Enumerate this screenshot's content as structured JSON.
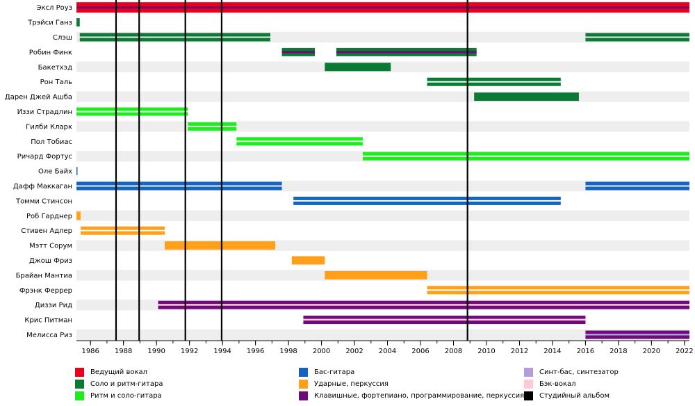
{
  "chart_data": {
    "type": "timeline",
    "title": "",
    "xlim": [
      1985.15,
      2022.3
    ],
    "tick_labels": [
      "1986",
      "1988",
      "1990",
      "1992",
      "1994",
      "1996",
      "1998",
      "2000",
      "2002",
      "2004",
      "2006",
      "2008",
      "2010",
      "2012",
      "2014",
      "2016",
      "2018",
      "2020",
      "2022"
    ],
    "ticks": [
      1986,
      1988,
      1990,
      1992,
      1994,
      1996,
      1998,
      2000,
      2002,
      2004,
      2006,
      2008,
      2010,
      2012,
      2014,
      2016,
      2018,
      2020,
      2022
    ],
    "albums": [
      1987.55,
      1988.95,
      1991.75,
      1993.95,
      2008.85
    ],
    "members": [
      {
        "name": "Эксл Роуз",
        "periods": [
          {
            "start": 1985.15,
            "end": 2022.3,
            "roles": [
              "vocal",
              "keys"
            ]
          }
        ]
      },
      {
        "name": "Трэйси Ганз",
        "periods": [
          {
            "start": 1985.15,
            "end": 1985.35,
            "roles": [
              "lead_guitar"
            ]
          }
        ]
      },
      {
        "name": "Слэш",
        "periods": [
          {
            "start": 1985.35,
            "end": 1996.9,
            "roles": [
              "lead_guitar",
              "lead_guitar"
            ]
          },
          {
            "start": 2016.0,
            "end": 2022.3,
            "roles": [
              "lead_guitar",
              "lead_guitar"
            ]
          }
        ]
      },
      {
        "name": "Робин Финк",
        "periods": [
          {
            "start": 1997.6,
            "end": 1999.6,
            "roles": [
              "lead_guitar",
              "keys"
            ]
          },
          {
            "start": 2000.9,
            "end": 2009.4,
            "roles": [
              "lead_guitar",
              "keys"
            ]
          }
        ]
      },
      {
        "name": "Бакетхэд",
        "periods": [
          {
            "start": 2000.2,
            "end": 2004.2,
            "roles": [
              "lead_guitar"
            ]
          }
        ]
      },
      {
        "name": "Рон Таль",
        "periods": [
          {
            "start": 2006.4,
            "end": 2014.5,
            "roles": [
              "lead_guitar",
              "lead_guitar"
            ]
          }
        ]
      },
      {
        "name": "Дарен Джей Ашба",
        "periods": [
          {
            "start": 2009.25,
            "end": 2015.6,
            "roles": [
              "lead_guitar"
            ]
          }
        ]
      },
      {
        "name": "Иззи Страдлин",
        "periods": [
          {
            "start": 1985.15,
            "end": 1991.9,
            "roles": [
              "rhythm_guitar",
              "rhythm_guitar"
            ]
          }
        ]
      },
      {
        "name": "Гилби Кларк",
        "periods": [
          {
            "start": 1991.9,
            "end": 1994.85,
            "roles": [
              "rhythm_guitar",
              "rhythm_guitar"
            ]
          }
        ]
      },
      {
        "name": "Пол Тобиас",
        "periods": [
          {
            "start": 1994.85,
            "end": 2002.5,
            "roles": [
              "rhythm_guitar",
              "rhythm_guitar"
            ]
          }
        ]
      },
      {
        "name": "Ричард Фортус",
        "periods": [
          {
            "start": 2002.5,
            "end": 2022.3,
            "roles": [
              "rhythm_guitar",
              "rhythm_guitar"
            ]
          }
        ]
      },
      {
        "name": "Оле Байх",
        "periods": [
          {
            "start": 1985.15,
            "end": 1985.2,
            "roles": [
              "bass"
            ]
          }
        ]
      },
      {
        "name": "Дафф Маккаган",
        "periods": [
          {
            "start": 1985.15,
            "end": 1997.6,
            "roles": [
              "bass",
              "bass"
            ]
          },
          {
            "start": 2016.0,
            "end": 2022.3,
            "roles": [
              "bass",
              "bass"
            ]
          }
        ]
      },
      {
        "name": "Томми Стинсон",
        "periods": [
          {
            "start": 1998.3,
            "end": 2014.5,
            "roles": [
              "bass",
              "bass"
            ]
          }
        ]
      },
      {
        "name": "Роб Гарднер",
        "periods": [
          {
            "start": 1985.15,
            "end": 1985.4,
            "roles": [
              "drums"
            ]
          }
        ]
      },
      {
        "name": "Стивен Адлер",
        "periods": [
          {
            "start": 1985.4,
            "end": 1990.5,
            "roles": [
              "drums",
              "drums"
            ]
          }
        ]
      },
      {
        "name": "Мэтт Сорум",
        "periods": [
          {
            "start": 1990.5,
            "end": 1997.2,
            "roles": [
              "drums"
            ]
          }
        ]
      },
      {
        "name": "Джош Фриз",
        "periods": [
          {
            "start": 1998.2,
            "end": 2000.2,
            "roles": [
              "drums"
            ]
          }
        ]
      },
      {
        "name": "Брайан Мантиа",
        "periods": [
          {
            "start": 2000.2,
            "end": 2006.4,
            "roles": [
              "drums"
            ]
          }
        ]
      },
      {
        "name": "Фрэнк Феррер",
        "periods": [
          {
            "start": 2006.4,
            "end": 2022.3,
            "roles": [
              "drums",
              "drums"
            ]
          }
        ]
      },
      {
        "name": "Диззи Рид",
        "periods": [
          {
            "start": 1990.1,
            "end": 2022.3,
            "roles": [
              "keys",
              "back_vocal",
              "keys"
            ]
          }
        ]
      },
      {
        "name": "Крис Питман",
        "periods": [
          {
            "start": 1998.9,
            "end": 2016.0,
            "roles": [
              "keys",
              "back_vocal",
              "keys"
            ]
          }
        ]
      },
      {
        "name": "Мелисса Риз",
        "periods": [
          {
            "start": 2016.0,
            "end": 2022.3,
            "roles": [
              "keys",
              "synth_bass",
              "keys"
            ]
          }
        ]
      }
    ],
    "roles": {
      "vocal": "#e8001c",
      "lead_guitar": "#0a7a35",
      "rhythm_guitar": "#19f019",
      "bass": "#1565c0",
      "drums": "#ff9f1a",
      "keys": "#6e0a7a",
      "synth_bass": "#b39ddb",
      "back_vocal": "#ffcad4",
      "album": "#000000"
    }
  },
  "legend": [
    {
      "label": "Ведущий вокал",
      "color": "#e8001c"
    },
    {
      "label": "Соло и ритм-гитара",
      "color": "#0a7a35"
    },
    {
      "label": "Ритм и соло-гитара",
      "color": "#19f019"
    },
    {
      "label": "Бас-гитара",
      "color": "#1565c0"
    },
    {
      "label": "Ударные, перкуссия",
      "color": "#ff9f1a"
    },
    {
      "label": "Клавишные, фортепиано, программирование, перкуссия",
      "color": "#6e0a7a"
    },
    {
      "label": "Синт-бас, синтезатор",
      "color": "#b39ddb"
    },
    {
      "label": "Бэк-вокал",
      "color": "#ffcad4"
    },
    {
      "label": "Студийный альбом",
      "color": "#000000"
    }
  ]
}
